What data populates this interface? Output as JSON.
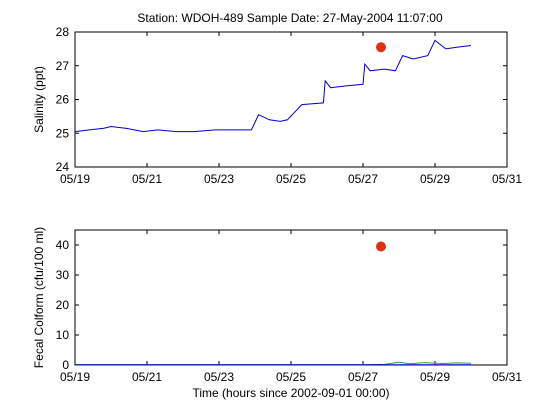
{
  "title": "Station: WDOH-489  Sample Date: 27-May-2004 11:07:00",
  "colors": {
    "line": "#0000cc",
    "sample": "#e03010",
    "fecal_line": "#22aa22",
    "axis": "#000000"
  },
  "chart_data": [
    {
      "type": "line",
      "ylabel": "Salinity (ppt)",
      "xlabel": "",
      "xticks": [
        "05/19",
        "05/21",
        "05/23",
        "05/25",
        "05/27",
        "05/29",
        "05/31"
      ],
      "xlim": [
        0,
        12
      ],
      "ylim": [
        24,
        28
      ],
      "yticks": [
        "24",
        "25",
        "26",
        "27",
        "28"
      ],
      "series": [
        {
          "x": [
            0,
            0.4,
            0.8,
            1.0,
            1.4,
            1.9,
            2.3,
            2.8,
            3.3,
            3.9,
            4.4,
            4.9,
            5.1,
            5.4,
            5.7,
            5.9,
            6.3,
            6.9,
            6.95,
            7.1,
            7.5,
            8.0,
            8.05,
            8.2,
            8.6,
            8.9,
            9.1,
            9.4,
            9.8,
            10.0,
            10.3,
            10.6,
            11.0
          ],
          "y": [
            25.05,
            25.1,
            25.15,
            25.2,
            25.15,
            25.05,
            25.1,
            25.05,
            25.05,
            25.1,
            25.1,
            25.1,
            25.55,
            25.4,
            25.35,
            25.4,
            25.85,
            25.9,
            26.55,
            26.35,
            26.4,
            26.45,
            27.05,
            26.85,
            26.9,
            26.85,
            27.3,
            27.2,
            27.3,
            27.75,
            27.5,
            27.55,
            27.6
          ]
        }
      ],
      "sample_point": {
        "x": 8.5,
        "y": 27.55
      }
    },
    {
      "type": "line",
      "ylabel": "Fecal Colform (cfu/100 ml)",
      "xlabel": "Time (hours since 2002-09-01 00:00)",
      "xticks": [
        "05/19",
        "05/21",
        "05/23",
        "05/25",
        "05/27",
        "05/29",
        "05/31"
      ],
      "xlim": [
        0,
        12
      ],
      "ylim": [
        0,
        45
      ],
      "yticks": [
        "0",
        "10",
        "20",
        "30",
        "40"
      ],
      "series": [
        {
          "x": [
            0,
            2,
            4,
            6,
            8,
            8.6,
            9.0,
            9.3,
            9.7,
            10.2,
            10.6,
            11.0
          ],
          "y": [
            0.1,
            0.1,
            0.1,
            0.1,
            0.1,
            0.2,
            0.9,
            0.4,
            0.8,
            0.5,
            0.7,
            0.6
          ]
        }
      ],
      "sample_point": {
        "x": 8.5,
        "y": 39.5
      }
    }
  ]
}
